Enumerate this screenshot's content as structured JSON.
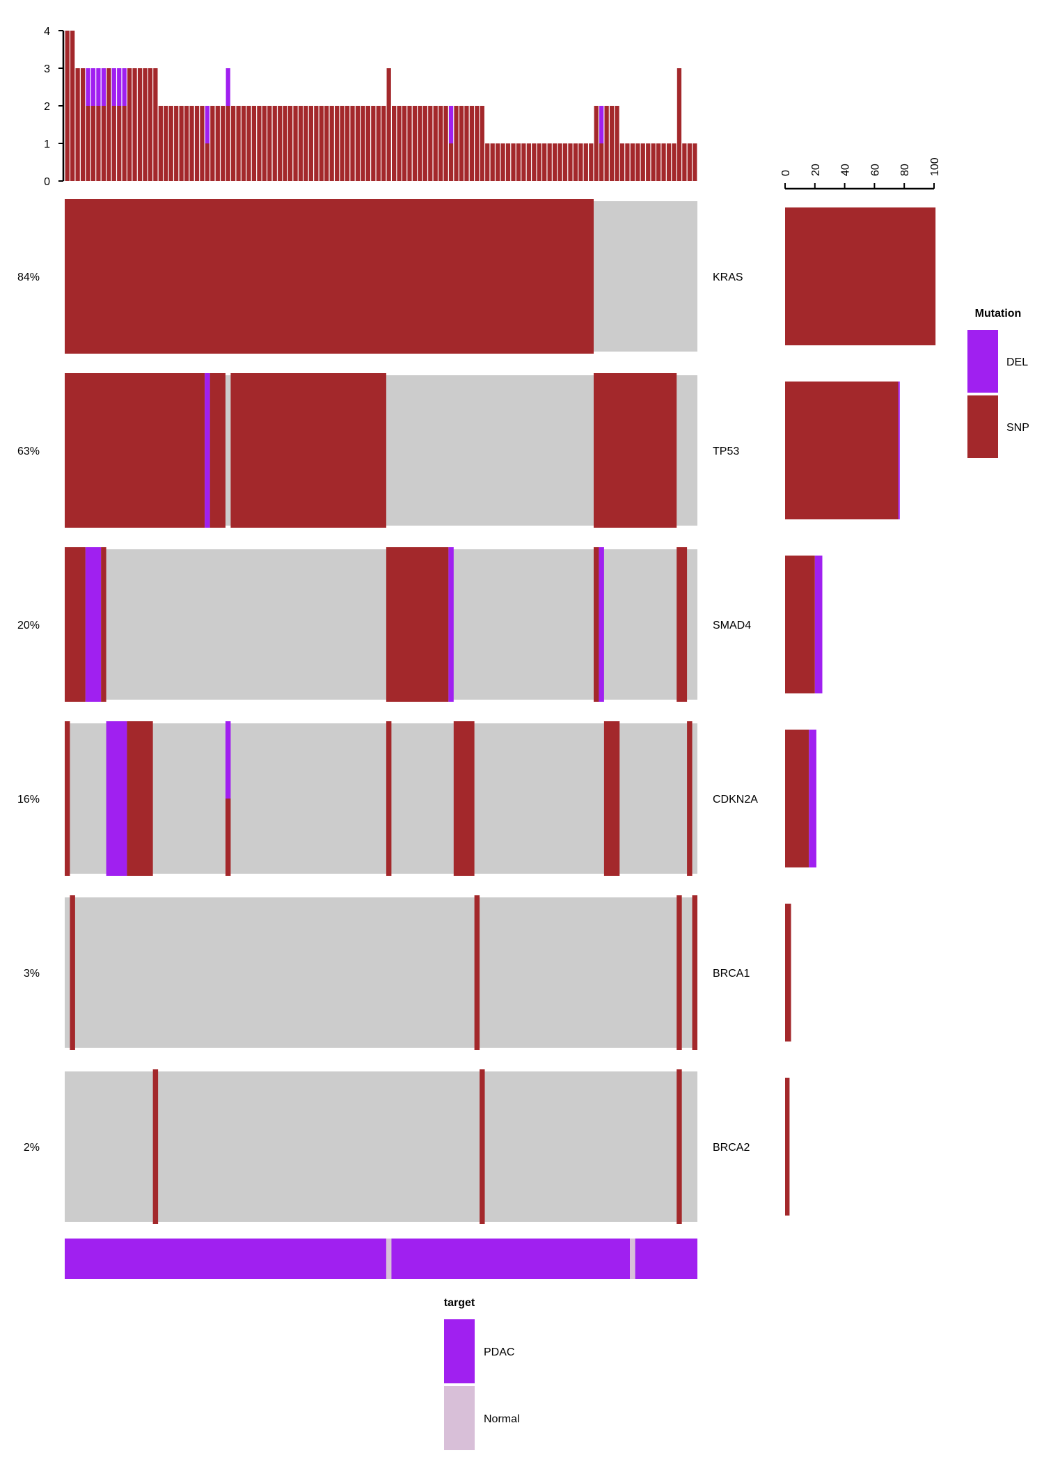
{
  "chart_data": {
    "type": "oncoprint",
    "n_samples": 122,
    "colors": {
      "SNP": "#a3282b",
      "DEL": "#a020f0",
      "background": "#cccccc",
      "PDAC": "#a020f0",
      "Normal": "#d8bfd8"
    },
    "top_bar": {
      "yticks": [
        "0",
        "1",
        "2",
        "3",
        "4"
      ],
      "ylim": [
        0,
        4
      ],
      "segments": [
        [
          0,
          1,
          [
            4,
            0
          ]
        ],
        [
          1,
          2,
          [
            4,
            0
          ]
        ],
        [
          2,
          4,
          [
            3,
            0
          ]
        ],
        [
          4,
          8,
          [
            2,
            1
          ]
        ],
        [
          8,
          9,
          [
            3,
            0
          ]
        ],
        [
          9,
          12,
          [
            2,
            1
          ]
        ],
        [
          12,
          18,
          [
            3,
            0
          ]
        ],
        [
          18,
          27,
          [
            2,
            0
          ]
        ],
        [
          27,
          28,
          [
            1,
            1
          ]
        ],
        [
          28,
          31,
          [
            2,
            0
          ]
        ],
        [
          31,
          32,
          [
            2,
            1
          ]
        ],
        [
          32,
          62,
          [
            2,
            0
          ]
        ],
        [
          62,
          63,
          [
            3,
            0
          ]
        ],
        [
          63,
          74,
          [
            2,
            0
          ]
        ],
        [
          74,
          75,
          [
            1,
            1
          ]
        ],
        [
          75,
          81,
          [
            2,
            0
          ]
        ],
        [
          81,
          102,
          [
            1,
            0
          ]
        ],
        [
          102,
          103,
          [
            2,
            0
          ]
        ],
        [
          103,
          104,
          [
            1,
            1
          ]
        ],
        [
          104,
          107,
          [
            2,
            0
          ]
        ],
        [
          107,
          118,
          [
            1,
            0
          ]
        ],
        [
          118,
          119,
          [
            3,
            0
          ]
        ],
        [
          119,
          122,
          [
            1,
            0
          ]
        ]
      ]
    },
    "genes": [
      {
        "name": "KRAS",
        "pct": "84%",
        "snp": 101,
        "del": 0,
        "segments": [
          [
            0,
            102,
            "SNP"
          ]
        ]
      },
      {
        "name": "TP53",
        "pct": "63%",
        "snp": 76,
        "del": 1,
        "segments": [
          [
            0,
            27,
            "SNP"
          ],
          [
            27,
            28,
            "DEL"
          ],
          [
            28,
            31,
            "SNP"
          ],
          [
            32,
            62,
            "SNP"
          ],
          [
            102,
            118,
            "SNP"
          ]
        ]
      },
      {
        "name": "SMAD4",
        "pct": "20%",
        "snp": 20,
        "del": 5,
        "segments": [
          [
            0,
            4,
            "SNP"
          ],
          [
            4,
            7,
            "DEL"
          ],
          [
            7,
            8,
            "SNP"
          ],
          [
            62,
            74,
            "SNP"
          ],
          [
            74,
            75,
            "DEL"
          ],
          [
            102,
            103,
            "SNP"
          ],
          [
            103,
            104,
            "DEL"
          ],
          [
            118,
            120,
            "SNP"
          ]
        ]
      },
      {
        "name": "CDKN2A",
        "pct": "16%",
        "snp": 16,
        "del": 5,
        "segments": [
          [
            0,
            1,
            "SNP"
          ],
          [
            8,
            12,
            "DEL"
          ],
          [
            12,
            17,
            "SNP"
          ],
          [
            31,
            32,
            "SPLIT"
          ],
          [
            62,
            63,
            "SNP"
          ],
          [
            75,
            79,
            "SNP"
          ],
          [
            104,
            107,
            "SNP"
          ],
          [
            120,
            121,
            "SNP"
          ]
        ]
      },
      {
        "name": "BRCA1",
        "pct": "3%",
        "snp": 4,
        "del": 0,
        "segments": [
          [
            1,
            2,
            "SNP"
          ],
          [
            79,
            80,
            "SNP"
          ],
          [
            118,
            119,
            "SNP"
          ],
          [
            121,
            122,
            "SNP"
          ]
        ]
      },
      {
        "name": "BRCA2",
        "pct": "2%",
        "snp": 3,
        "del": 0,
        "segments": [
          [
            17,
            18,
            "SNP"
          ],
          [
            80,
            81,
            "SNP"
          ],
          [
            118,
            119,
            "SNP"
          ]
        ]
      }
    ],
    "right_axis": {
      "ticks": [
        "0",
        "20",
        "40",
        "60",
        "80",
        "100"
      ],
      "xlim": [
        0,
        100
      ]
    },
    "target_bar": [
      [
        0,
        62,
        "PDAC"
      ],
      [
        62,
        63,
        "Normal"
      ],
      [
        63,
        109,
        "PDAC"
      ],
      [
        109,
        110,
        "Normal"
      ],
      [
        110,
        122,
        "PDAC"
      ]
    ],
    "legend_mutation": {
      "title": "Mutation",
      "items": [
        "DEL",
        "SNP"
      ]
    },
    "legend_target": {
      "title": "target",
      "items": [
        "PDAC",
        "Normal"
      ]
    }
  }
}
